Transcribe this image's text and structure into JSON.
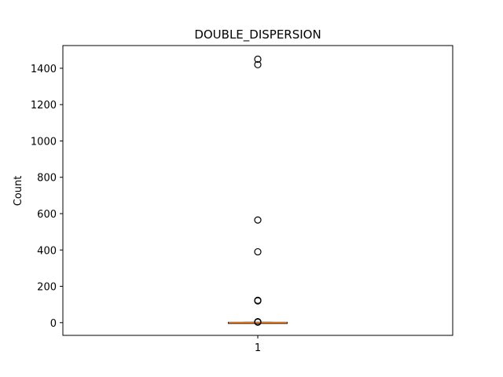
{
  "chart_data": {
    "type": "box",
    "title": "DOUBLE_DISPERSION",
    "xlabel": "",
    "ylabel": "Count",
    "categories": [
      "1"
    ],
    "ylim": [
      -70,
      1525
    ],
    "yticks": [
      0,
      200,
      400,
      600,
      800,
      1000,
      1200,
      1400
    ],
    "boxes": [
      {
        "category": "1",
        "whisker_low": 0,
        "q1": 0,
        "median": 0,
        "q3": 1,
        "whisker_high": 2,
        "outliers": [
          1450,
          1420,
          565,
          390,
          123,
          120,
          5,
          4,
          3
        ]
      }
    ],
    "grid": false,
    "colors": {
      "median": "#ff7f0e",
      "box": "#000000",
      "outlier": "#000000"
    }
  }
}
